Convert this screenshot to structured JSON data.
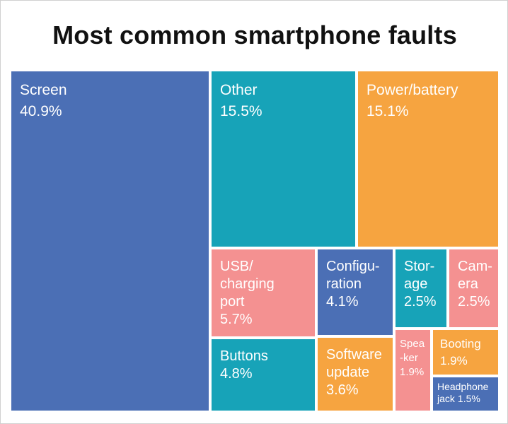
{
  "chart_data": {
    "type": "treemap",
    "title": "Most common smartphone faults",
    "unit": "%",
    "items": [
      {
        "key": "screen",
        "label": "Screen",
        "value": 40.9,
        "value_label": "40.9%",
        "color": "#4B6FB5"
      },
      {
        "key": "other",
        "label": "Other",
        "value": 15.5,
        "value_label": "15.5%",
        "color": "#17A3B8"
      },
      {
        "key": "power_battery",
        "label": "Power/battery",
        "value": 15.1,
        "value_label": "15.1%",
        "color": "#F6A440"
      },
      {
        "key": "usb_charging_port",
        "label": "USB/\ncharging\nport",
        "value": 5.7,
        "value_label": "5.7%",
        "color": "#F49191"
      },
      {
        "key": "configuration",
        "label": "Configu-\nration",
        "value": 4.1,
        "value_label": "4.1%",
        "color": "#4B6FB5"
      },
      {
        "key": "storage",
        "label": "Stor-\nage",
        "value": 2.5,
        "value_label": "2.5%",
        "color": "#17A3B8"
      },
      {
        "key": "camera",
        "label": "Cam-\nera",
        "value": 2.5,
        "value_label": "2.5%",
        "color": "#F49191"
      },
      {
        "key": "buttons",
        "label": "Buttons",
        "value": 4.8,
        "value_label": "4.8%",
        "color": "#17A3B8"
      },
      {
        "key": "software_update",
        "label": "Software\nupdate",
        "value": 3.6,
        "value_label": "3.6%",
        "color": "#F6A440"
      },
      {
        "key": "speaker",
        "label": "Spea\n-ker",
        "value": 1.9,
        "value_label": "1.9%",
        "color": "#F49191"
      },
      {
        "key": "booting",
        "label": "Booting",
        "value": 1.9,
        "value_label": "1.9%",
        "color": "#F6A440"
      },
      {
        "key": "headphone_jack",
        "label": "Headphone\njack",
        "value": 1.5,
        "value_label": "1.5%",
        "color": "#4B6FB5"
      }
    ]
  }
}
